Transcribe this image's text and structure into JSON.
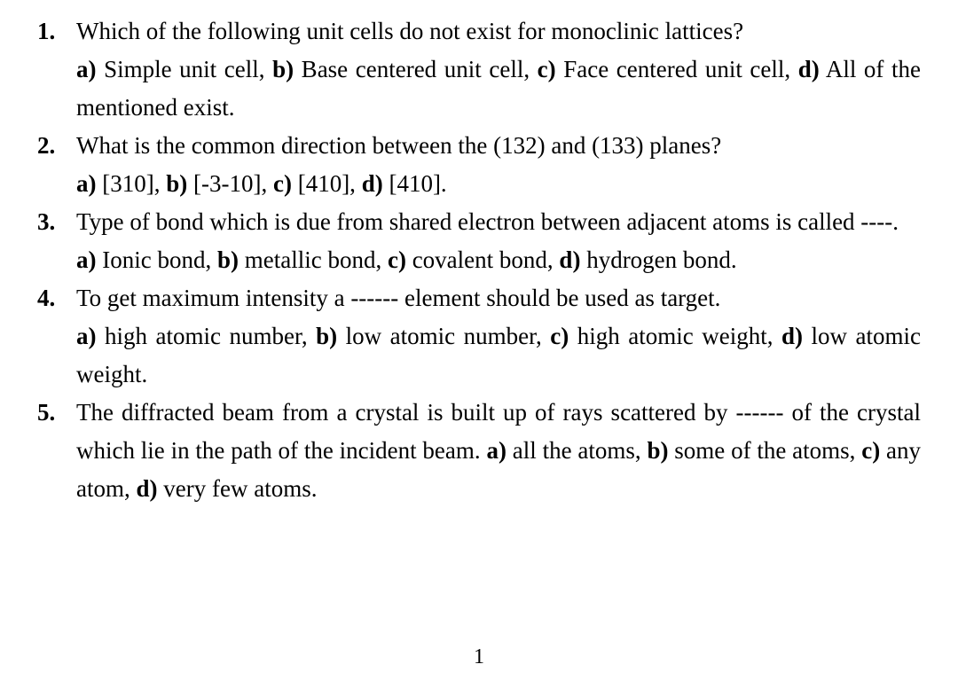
{
  "page_number": "1",
  "text_color": "#000000",
  "background_color": "#ffffff",
  "font_family": "Times New Roman",
  "base_font_size": 27,
  "line_height": 43,
  "questions": [
    {
      "number": "1.",
      "text": "Which of the following unit cells do not exist for monoclinic lattices?",
      "opts": {
        "a_label": "a)",
        "a_text": " Simple unit cell, ",
        "b_label": "b)",
        "b_text": " Base centered unit cell, ",
        "c_label": "c)",
        "c_text": " Face centered unit cell, ",
        "d_label": "d)",
        "d_text": " All of the mentioned exist."
      }
    },
    {
      "number": "2.",
      "text": "What is the common direction between the (132) and (133) planes?",
      "opts": {
        "a_label": "a)",
        "a_text": " [310], ",
        "b_label": "b)",
        "b_text": " [-3-10], ",
        "c_label": "c)",
        "c_text": " [410], ",
        "d_label": "d)",
        "d_text": " [410]."
      }
    },
    {
      "number": "3.",
      "text": "Type of bond which is due from shared electron between adjacent atoms is called ----.",
      "opts": {
        "a_label": "a)",
        "a_text": " Ionic bond, ",
        "b_label": "b)",
        "b_text": " metallic bond, ",
        "c_label": "c)",
        "c_text": " covalent bond, ",
        "d_label": "d)",
        "d_text": " hydrogen bond."
      }
    },
    {
      "number": "4.",
      "text": "To get maximum intensity a ------ element should be used as target.",
      "opts": {
        "a_label": "a)",
        "a_text": " high atomic number, ",
        "b_label": "b)",
        "b_text": " low atomic number, ",
        "c_label": "c)",
        "c_text": " high atomic weight, ",
        "d_label": "d)",
        "d_text": " low atomic weight."
      }
    },
    {
      "number": "5.",
      "text": "The diffracted beam from a crystal is built up of rays scattered by ------ of the crystal which lie in the path of the incident beam.",
      "opts": {
        "a_label": "a)",
        "a_text": " all the atoms, ",
        "b_label": "b)",
        "b_text": " some of the atoms, ",
        "c_label": "c)",
        "c_text": " any atom, ",
        "d_label": "d)",
        "d_text": " very few atoms."
      }
    }
  ]
}
